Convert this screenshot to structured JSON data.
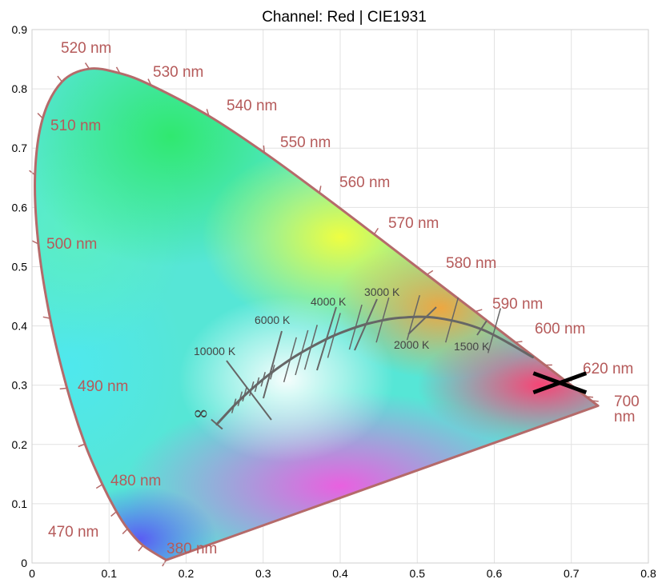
{
  "chart_data": {
    "type": "scatter",
    "title": "Channel: Red | CIE1931",
    "xlabel": "",
    "ylabel": "",
    "xlim": [
      0,
      0.8
    ],
    "ylim": [
      0,
      0.9
    ],
    "x_ticks": [
      "0",
      "0.1",
      "0.2",
      "0.3",
      "0.4",
      "0.5",
      "0.6",
      "0.7",
      "0.8"
    ],
    "y_ticks": [
      "0",
      "0.1",
      "0.2",
      "0.3",
      "0.4",
      "0.5",
      "0.6",
      "0.7",
      "0.8",
      "0.9"
    ],
    "grid": true,
    "spectral_locus": [
      {
        "nm": 380,
        "x": 0.1741,
        "y": 0.005
      },
      {
        "nm": 460,
        "x": 0.144,
        "y": 0.0297
      },
      {
        "nm": 470,
        "x": 0.1241,
        "y": 0.0578
      },
      {
        "nm": 475,
        "x": 0.1096,
        "y": 0.0868
      },
      {
        "nm": 480,
        "x": 0.0913,
        "y": 0.1327
      },
      {
        "nm": 485,
        "x": 0.0687,
        "y": 0.2007
      },
      {
        "nm": 490,
        "x": 0.0454,
        "y": 0.295
      },
      {
        "nm": 495,
        "x": 0.0235,
        "y": 0.4127
      },
      {
        "nm": 500,
        "x": 0.0082,
        "y": 0.5384
      },
      {
        "nm": 505,
        "x": 0.0039,
        "y": 0.6548
      },
      {
        "nm": 510,
        "x": 0.0139,
        "y": 0.7502
      },
      {
        "nm": 515,
        "x": 0.0389,
        "y": 0.812
      },
      {
        "nm": 520,
        "x": 0.0743,
        "y": 0.8338
      },
      {
        "nm": 525,
        "x": 0.1142,
        "y": 0.8262
      },
      {
        "nm": 530,
        "x": 0.1547,
        "y": 0.8059
      },
      {
        "nm": 540,
        "x": 0.2296,
        "y": 0.7543
      },
      {
        "nm": 550,
        "x": 0.3016,
        "y": 0.6923
      },
      {
        "nm": 560,
        "x": 0.3731,
        "y": 0.6245
      },
      {
        "nm": 570,
        "x": 0.4441,
        "y": 0.5547
      },
      {
        "nm": 580,
        "x": 0.5125,
        "y": 0.4866
      },
      {
        "nm": 590,
        "x": 0.5752,
        "y": 0.4242
      },
      {
        "nm": 600,
        "x": 0.627,
        "y": 0.3725
      },
      {
        "nm": 610,
        "x": 0.6658,
        "y": 0.334
      },
      {
        "nm": 620,
        "x": 0.6915,
        "y": 0.3083
      },
      {
        "nm": 630,
        "x": 0.7079,
        "y": 0.292
      },
      {
        "nm": 640,
        "x": 0.719,
        "y": 0.2809
      },
      {
        "nm": 650,
        "x": 0.726,
        "y": 0.274
      },
      {
        "nm": 700,
        "x": 0.7347,
        "y": 0.2653
      }
    ],
    "wavelength_labels": [
      {
        "text": "380 nm",
        "nm": 380
      },
      {
        "text": "470 nm",
        "nm": 470
      },
      {
        "text": "480 nm",
        "nm": 480
      },
      {
        "text": "490 nm",
        "nm": 490
      },
      {
        "text": "500 nm",
        "nm": 500
      },
      {
        "text": "510 nm",
        "nm": 510
      },
      {
        "text": "520 nm",
        "nm": 520
      },
      {
        "text": "530 nm",
        "nm": 530
      },
      {
        "text": "540 nm",
        "nm": 540
      },
      {
        "text": "550 nm",
        "nm": 550
      },
      {
        "text": "560 nm",
        "nm": 560
      },
      {
        "text": "570 nm",
        "nm": 570
      },
      {
        "text": "580 nm",
        "nm": 580
      },
      {
        "text": "590 nm",
        "nm": 590
      },
      {
        "text": "600 nm",
        "nm": 600
      },
      {
        "text": "620 nm",
        "nm": 620
      },
      {
        "text": "700",
        "nm": 700
      },
      {
        "text": "nm",
        "nm": 700
      }
    ],
    "planckian_locus": [
      {
        "K": 1000,
        "x": 0.6499,
        "y": 0.3474
      },
      {
        "K": 1500,
        "x": 0.5857,
        "y": 0.3931
      },
      {
        "K": 2000,
        "x": 0.5267,
        "y": 0.4133
      },
      {
        "K": 2500,
        "x": 0.477,
        "y": 0.4137
      },
      {
        "K": 3000,
        "x": 0.4369,
        "y": 0.4041
      },
      {
        "K": 3500,
        "x": 0.4053,
        "y": 0.3907
      },
      {
        "K": 4000,
        "x": 0.3805,
        "y": 0.3768
      },
      {
        "K": 5000,
        "x": 0.3451,
        "y": 0.3516
      },
      {
        "K": 6000,
        "x": 0.3221,
        "y": 0.3318
      },
      {
        "K": 7000,
        "x": 0.3064,
        "y": 0.3166
      },
      {
        "K": 8000,
        "x": 0.2952,
        "y": 0.3048
      },
      {
        "K": 10000,
        "x": 0.2807,
        "y": 0.2884
      },
      {
        "K": 15000,
        "x": 0.2637,
        "y": 0.2674
      },
      {
        "K": "inf",
        "x": 0.2399,
        "y": 0.2341
      }
    ],
    "isotherms": [
      {
        "label": "10000 K",
        "K": 10000
      },
      {
        "label": "6000 K",
        "K": 6000
      },
      {
        "label": "4000 K",
        "K": 4000
      },
      {
        "label": "3000 K",
        "K": 3000
      },
      {
        "label": "2000 K",
        "K": 2000
      },
      {
        "label": "1500 K",
        "K": 1500
      }
    ],
    "infinity_label": "∞",
    "marker": {
      "x": 0.685,
      "y": 0.304,
      "symbol": "X",
      "color": "#000000"
    },
    "colors": {
      "locus_stroke": "#b56a6a",
      "label": "#b55a5a",
      "planckian": "#666666"
    }
  }
}
